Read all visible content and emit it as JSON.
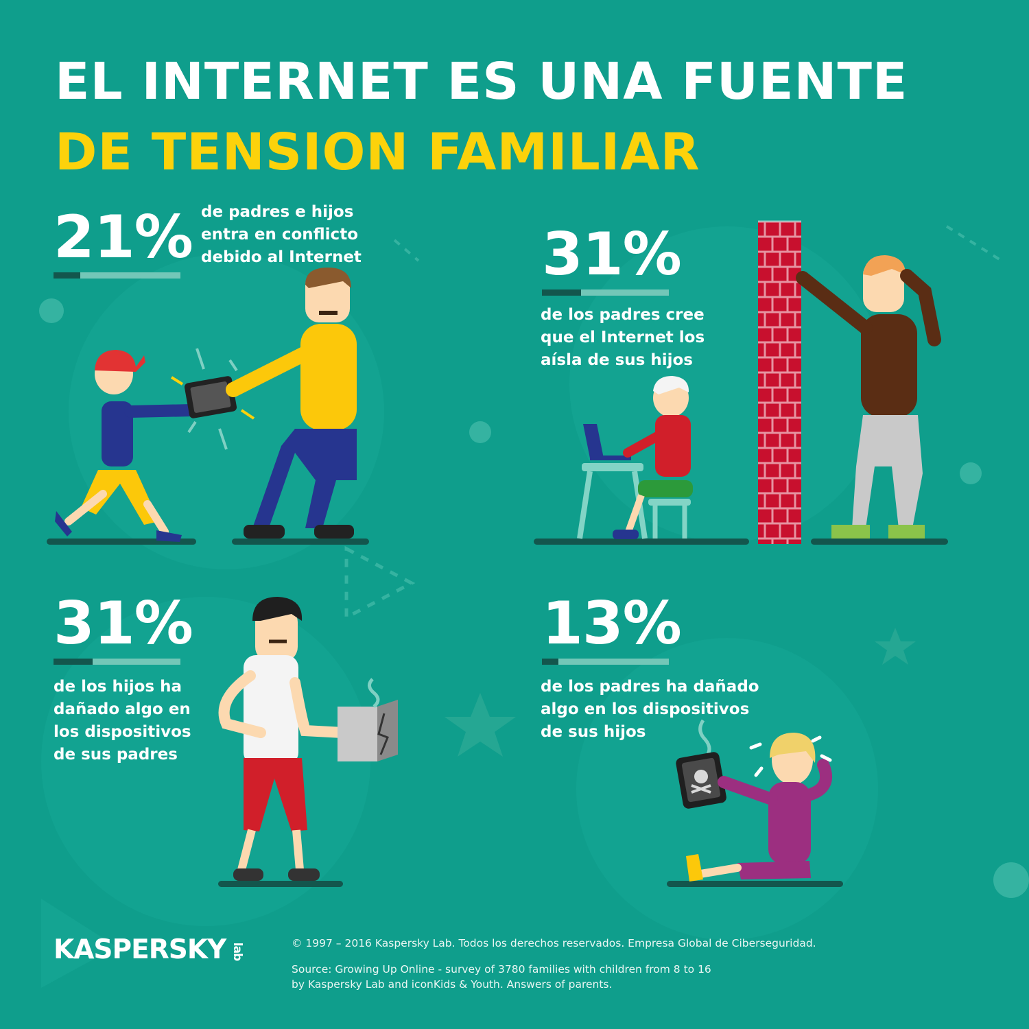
{
  "title": {
    "line1": "EL INTERNET ES UNA FUENTE",
    "line2": "DE TENSION FAMILIAR"
  },
  "stats": [
    {
      "value": 21,
      "label": "21%",
      "lines": [
        "de padres e hijos",
        "entra en conflicto",
        "debido al Internet"
      ]
    },
    {
      "value": 31,
      "label": "31%",
      "lines": [
        "de los padres cree",
        "que el Internet los",
        "aísla de sus hijos"
      ]
    },
    {
      "value": 31,
      "label": "31%",
      "lines": [
        "de los hijos ha",
        "dañado algo en",
        "los dispositivos",
        "de sus padres"
      ]
    },
    {
      "value": 13,
      "label": "13%",
      "lines": [
        "de los padres ha dañado",
        "algo en los dispositivos",
        "de sus hijos"
      ]
    }
  ],
  "footer": {
    "copyright": "© 1997 – 2016 Kaspersky Lab. Todos los derechos reservados. Empresa Global de Ciberseguridad.",
    "source_line1": "Source: Growing Up Online - survey of 3780 families with children from 8 to 16",
    "source_line2": "by Kaspersky Lab and iconKids & Youth. Answers of parents."
  },
  "logo": {
    "main": "KASPERSKY",
    "sub": "lab"
  },
  "colors": {
    "background": "#0f9e8c",
    "title_accent": "#fcd20b",
    "bar_dark": "#13564d",
    "bar_light": "#73c7b8",
    "brick": "#c8102e"
  }
}
